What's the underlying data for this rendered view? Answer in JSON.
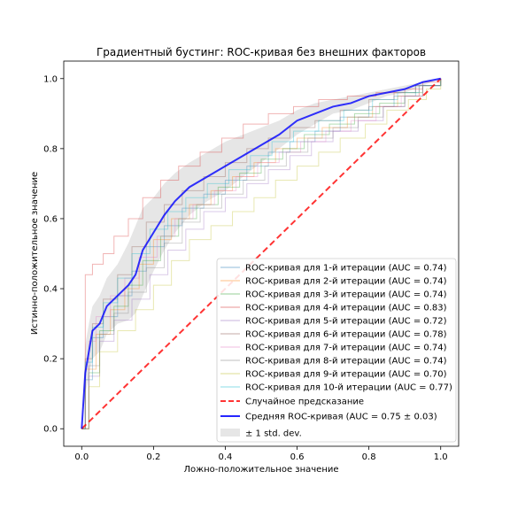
{
  "chart_data": {
    "type": "line",
    "title": "Градиентный бустинг: ROC-кривая без внешних факторов",
    "xlabel": "Ложно-положительное значение",
    "ylabel": "Истинно-положительное значение",
    "xlim": [
      -0.05,
      1.05
    ],
    "ylim": [
      -0.05,
      1.05
    ],
    "xticks": [
      "0.0",
      "0.2",
      "0.4",
      "0.6",
      "0.8",
      "1.0"
    ],
    "yticks": [
      "0.0",
      "0.2",
      "0.4",
      "0.6",
      "0.8",
      "1.0"
    ],
    "grid": false,
    "legend_position": "lower-right",
    "series": [
      {
        "name": "ROC-кривая для 1-й итерации (AUC = 0.74)",
        "color": "#1f77b4",
        "x": [
          0,
          0.01,
          0.03,
          0.06,
          0.1,
          0.14,
          0.18,
          0.23,
          0.28,
          0.34,
          0.4,
          0.46,
          0.52,
          0.58,
          0.65,
          0.72,
          0.8,
          0.87,
          0.93,
          1
        ],
        "y": [
          0,
          0.14,
          0.26,
          0.32,
          0.38,
          0.45,
          0.52,
          0.58,
          0.63,
          0.67,
          0.71,
          0.75,
          0.79,
          0.82,
          0.85,
          0.89,
          0.92,
          0.95,
          0.98,
          1
        ]
      },
      {
        "name": "ROC-кривая для 2-й итерации (AUC = 0.74)",
        "color": "#ff7f0e",
        "x": [
          0,
          0.01,
          0.04,
          0.08,
          0.12,
          0.16,
          0.2,
          0.25,
          0.3,
          0.36,
          0.42,
          0.48,
          0.54,
          0.6,
          0.67,
          0.74,
          0.81,
          0.88,
          0.94,
          1
        ],
        "y": [
          0,
          0.17,
          0.27,
          0.34,
          0.4,
          0.47,
          0.54,
          0.6,
          0.64,
          0.68,
          0.72,
          0.76,
          0.8,
          0.83,
          0.86,
          0.89,
          0.92,
          0.95,
          0.98,
          1
        ]
      },
      {
        "name": "ROC-кривая для 3-й итерации (AUC = 0.74)",
        "color": "#2ca02c",
        "x": [
          0,
          0.02,
          0.05,
          0.09,
          0.13,
          0.17,
          0.22,
          0.27,
          0.32,
          0.38,
          0.44,
          0.5,
          0.56,
          0.62,
          0.69,
          0.76,
          0.83,
          0.9,
          0.95,
          1
        ],
        "y": [
          0,
          0.16,
          0.28,
          0.35,
          0.41,
          0.48,
          0.55,
          0.6,
          0.64,
          0.69,
          0.73,
          0.77,
          0.8,
          0.84,
          0.87,
          0.9,
          0.93,
          0.96,
          0.98,
          1
        ]
      },
      {
        "name": "ROC-кривая для 4-й итерации (AUC = 0.83)",
        "color": "#d62728",
        "x": [
          0,
          0.01,
          0.03,
          0.06,
          0.09,
          0.13,
          0.17,
          0.22,
          0.27,
          0.33,
          0.39,
          0.45,
          0.52,
          0.59,
          0.66,
          0.74,
          0.82,
          0.9,
          0.95,
          1
        ],
        "y": [
          0,
          0.44,
          0.47,
          0.5,
          0.55,
          0.6,
          0.66,
          0.71,
          0.75,
          0.79,
          0.83,
          0.87,
          0.9,
          0.92,
          0.94,
          0.95,
          0.96,
          0.97,
          0.99,
          1
        ]
      },
      {
        "name": "ROC-кривая для 5-й итерации (AUC = 0.72)",
        "color": "#9467bd",
        "x": [
          0,
          0.02,
          0.05,
          0.09,
          0.14,
          0.19,
          0.24,
          0.29,
          0.34,
          0.4,
          0.46,
          0.52,
          0.58,
          0.64,
          0.7,
          0.77,
          0.84,
          0.9,
          0.95,
          1
        ],
        "y": [
          0,
          0.15,
          0.25,
          0.31,
          0.37,
          0.44,
          0.51,
          0.57,
          0.62,
          0.66,
          0.7,
          0.74,
          0.78,
          0.82,
          0.85,
          0.88,
          0.92,
          0.95,
          0.98,
          1
        ]
      },
      {
        "name": "ROC-кривая для 6-й итерации (AUC = 0.78)",
        "color": "#8c564b",
        "x": [
          0,
          0.01,
          0.03,
          0.06,
          0.1,
          0.14,
          0.18,
          0.23,
          0.28,
          0.34,
          0.4,
          0.46,
          0.52,
          0.58,
          0.65,
          0.72,
          0.8,
          0.87,
          0.93,
          1
        ],
        "y": [
          0,
          0.2,
          0.3,
          0.37,
          0.44,
          0.52,
          0.59,
          0.64,
          0.68,
          0.72,
          0.76,
          0.8,
          0.83,
          0.86,
          0.88,
          0.91,
          0.94,
          0.96,
          0.98,
          1
        ]
      },
      {
        "name": "ROC-кривая для 7-й итерации (AUC = 0.74)",
        "color": "#e377c2",
        "x": [
          0,
          0.02,
          0.04,
          0.08,
          0.12,
          0.16,
          0.21,
          0.26,
          0.31,
          0.37,
          0.43,
          0.49,
          0.55,
          0.61,
          0.68,
          0.75,
          0.82,
          0.89,
          0.94,
          1
        ],
        "y": [
          0,
          0.25,
          0.32,
          0.38,
          0.43,
          0.49,
          0.55,
          0.6,
          0.64,
          0.68,
          0.72,
          0.76,
          0.79,
          0.82,
          0.85,
          0.88,
          0.92,
          0.95,
          0.98,
          1
        ]
      },
      {
        "name": "ROC-кривая для 8-й итерации (AUC = 0.74)",
        "color": "#7f7f7f",
        "x": [
          0,
          0.02,
          0.05,
          0.09,
          0.13,
          0.18,
          0.23,
          0.28,
          0.33,
          0.39,
          0.45,
          0.51,
          0.57,
          0.63,
          0.7,
          0.77,
          0.84,
          0.9,
          0.95,
          1
        ],
        "y": [
          0,
          0.18,
          0.27,
          0.33,
          0.39,
          0.46,
          0.53,
          0.59,
          0.63,
          0.67,
          0.71,
          0.75,
          0.79,
          0.83,
          0.86,
          0.89,
          0.92,
          0.95,
          0.98,
          1
        ]
      },
      {
        "name": "ROC-кривая для 9-й итерации (AUC = 0.70)",
        "color": "#bcbd22",
        "x": [
          0,
          0.02,
          0.05,
          0.1,
          0.15,
          0.2,
          0.25,
          0.3,
          0.36,
          0.42,
          0.48,
          0.54,
          0.6,
          0.66,
          0.72,
          0.79,
          0.85,
          0.91,
          0.96,
          1
        ],
        "y": [
          0,
          0.12,
          0.22,
          0.28,
          0.34,
          0.41,
          0.48,
          0.54,
          0.58,
          0.62,
          0.66,
          0.71,
          0.75,
          0.79,
          0.83,
          0.87,
          0.91,
          0.94,
          0.97,
          1
        ]
      },
      {
        "name": "ROC-кривая для 10-й итерации (AUC = 0.77)",
        "color": "#17becf",
        "x": [
          0,
          0.01,
          0.03,
          0.06,
          0.1,
          0.14,
          0.19,
          0.24,
          0.29,
          0.35,
          0.41,
          0.47,
          0.53,
          0.59,
          0.66,
          0.73,
          0.81,
          0.88,
          0.94,
          1
        ],
        "y": [
          0,
          0.19,
          0.29,
          0.36,
          0.43,
          0.5,
          0.57,
          0.62,
          0.66,
          0.7,
          0.74,
          0.78,
          0.82,
          0.85,
          0.88,
          0.91,
          0.94,
          0.96,
          0.98,
          1
        ]
      }
    ],
    "chance_line": {
      "name": "Случайное предсказание",
      "color": "#ff0000",
      "x": [
        0,
        1
      ],
      "y": [
        0,
        1
      ]
    },
    "mean_curve": {
      "name": "Средняя ROC-кривая (AUC = 0.75 ± 0.03)",
      "color": "#0000ff",
      "x": [
        0,
        0.01,
        0.02,
        0.03,
        0.05,
        0.07,
        0.1,
        0.13,
        0.15,
        0.17,
        0.2,
        0.23,
        0.26,
        0.3,
        0.35,
        0.4,
        0.45,
        0.5,
        0.55,
        0.6,
        0.65,
        0.7,
        0.75,
        0.8,
        0.85,
        0.9,
        0.95,
        1
      ],
      "y": [
        0,
        0.16,
        0.22,
        0.28,
        0.3,
        0.35,
        0.38,
        0.41,
        0.44,
        0.51,
        0.56,
        0.61,
        0.65,
        0.69,
        0.72,
        0.75,
        0.78,
        0.81,
        0.84,
        0.88,
        0.9,
        0.92,
        0.93,
        0.95,
        0.96,
        0.97,
        0.99,
        1
      ],
      "std_band_name": "± 1 std. dev.",
      "std_band_color": "#808080",
      "upper": [
        0,
        0.24,
        0.3,
        0.35,
        0.38,
        0.43,
        0.47,
        0.53,
        0.58,
        0.63,
        0.66,
        0.7,
        0.73,
        0.76,
        0.79,
        0.82,
        0.84,
        0.86,
        0.88,
        0.91,
        0.93,
        0.94,
        0.95,
        0.96,
        0.97,
        0.98,
        0.99,
        1
      ],
      "lower": [
        0,
        0.1,
        0.15,
        0.2,
        0.22,
        0.27,
        0.3,
        0.31,
        0.33,
        0.38,
        0.45,
        0.51,
        0.56,
        0.61,
        0.65,
        0.68,
        0.72,
        0.76,
        0.8,
        0.84,
        0.87,
        0.9,
        0.91,
        0.93,
        0.95,
        0.96,
        0.98,
        1
      ]
    }
  }
}
